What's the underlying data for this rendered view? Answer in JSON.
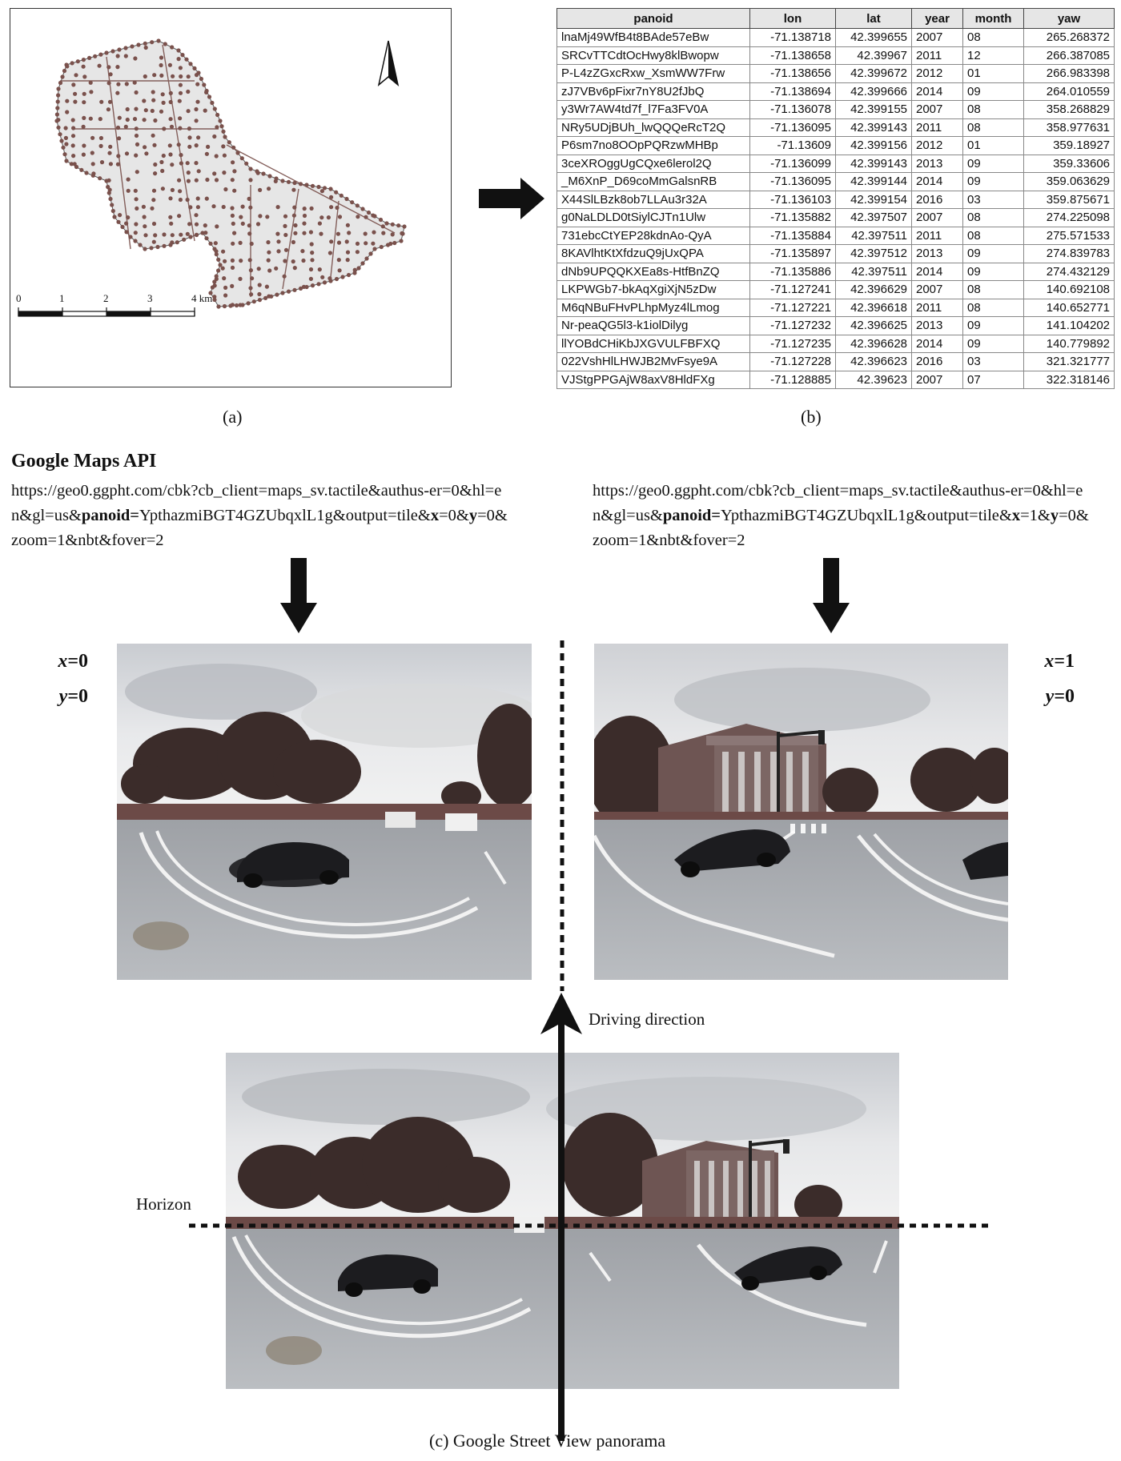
{
  "map": {
    "scale_ticks": [
      "0",
      "1",
      "2",
      "3",
      "4 km"
    ],
    "point_color": "#7a514c",
    "area_color": "#e6e6e6"
  },
  "table": {
    "headers": [
      "panoid",
      "lon",
      "lat",
      "year",
      "month",
      "yaw"
    ],
    "rows": [
      [
        "lnaMj49WfB4t8BAde57eBw",
        "-71.138718",
        "42.399655",
        "2007",
        "08",
        "265.268372"
      ],
      [
        "SRCvTTCdtOcHwy8klBwopw",
        "-71.138658",
        "42.39967",
        "2011",
        "12",
        "266.387085"
      ],
      [
        "P-L4zZGxcRxw_XsmWW7Frw",
        "-71.138656",
        "42.399672",
        "2012",
        "01",
        "266.983398"
      ],
      [
        "zJ7VBv6pFixr7nY8U2fJbQ",
        "-71.138694",
        "42.399666",
        "2014",
        "09",
        "264.010559"
      ],
      [
        "y3Wr7AW4td7f_l7Fa3FV0A",
        "-71.136078",
        "42.399155",
        "2007",
        "08",
        "358.268829"
      ],
      [
        "NRy5UDjBUh_lwQQQeRcT2Q",
        "-71.136095",
        "42.399143",
        "2011",
        "08",
        "358.977631"
      ],
      [
        "P6sm7no8OOpPQRzwMHBp",
        "-71.13609",
        "42.399156",
        "2012",
        "01",
        "359.18927"
      ],
      [
        "3ceXROggUgCQxe6lerol2Q",
        "-71.136099",
        "42.399143",
        "2013",
        "09",
        "359.33606"
      ],
      [
        "_M6XnP_D69coMmGalsnRB",
        "-71.136095",
        "42.399144",
        "2014",
        "09",
        "359.063629"
      ],
      [
        "X44SlLBzk8ob7LLAu3r32A",
        "-71.136103",
        "42.399154",
        "2016",
        "03",
        "359.875671"
      ],
      [
        "g0NaLDLD0tSiylCJTn1Ulw",
        "-71.135882",
        "42.397507",
        "2007",
        "08",
        "274.225098"
      ],
      [
        "731ebcCtYEP28kdnAo-QyA",
        "-71.135884",
        "42.397511",
        "2011",
        "08",
        "275.571533"
      ],
      [
        "8KAVlhtKtXfdzuQ9jUxQPA",
        "-71.135897",
        "42.397512",
        "2013",
        "09",
        "274.839783"
      ],
      [
        "dNb9UPQQKXEa8s-HtfBnZQ",
        "-71.135886",
        "42.397511",
        "2014",
        "09",
        "274.432129"
      ],
      [
        "LKPWGb7-bkAqXgiXjN5zDw",
        "-71.127241",
        "42.396629",
        "2007",
        "08",
        "140.692108"
      ],
      [
        "M6qNBuFHvPLhpMyz4lLmog",
        "-71.127221",
        "42.396618",
        "2011",
        "08",
        "140.652771"
      ],
      [
        "Nr-peaQG5l3-k1iolDilyg",
        "-71.127232",
        "42.396625",
        "2013",
        "09",
        "141.104202"
      ],
      [
        "llYOBdCHiKbJXGVULFBFXQ",
        "-71.127235",
        "42.396628",
        "2014",
        "09",
        "140.779892"
      ],
      [
        "022VshHlLHWJB2MvFsye9A",
        "-71.127228",
        "42.396623",
        "2016",
        "03",
        "321.321777"
      ],
      [
        "VJStgPPGAjW8axV8HldFXg",
        "-71.128885",
        "42.39623",
        "2007",
        "07",
        "322.318146"
      ]
    ]
  },
  "captions": {
    "a": "(a)",
    "b": "(b)",
    "c": "(c) Google Street View panorama"
  },
  "api": {
    "title": "Google Maps API",
    "url_left": {
      "pre": "https://geo0.ggpht.com/cbk?cb_client=maps_sv.tactile&authus-er=0&hl=en&gl=us&",
      "panoid_key": "panoid",
      "eq": "=",
      "mid": "YpthazmiBGT4GZUbqxlL1g&output=tile&",
      "x_key": "x",
      "x_val": "=0&",
      "y_key": "y",
      "y_val": "=0&zoom=1&nbt&fover=2"
    },
    "url_right": {
      "pre": "https://geo0.ggpht.com/cbk?cb_client=maps_sv.tactile&authus-er=0&hl=en&gl=us&",
      "panoid_key": "panoid",
      "eq": "=",
      "mid": "YpthazmiBGT4GZUbqxlL1g&output=tile&",
      "x_key": "x",
      "x_val": "=1&",
      "y_key": "y",
      "y_val": "=0&zoom=1&nbt&fover=2"
    }
  },
  "tiles": {
    "left": {
      "x_label": "x",
      "x_value": "=0",
      "y_label": "y",
      "y_value": "=0"
    },
    "right": {
      "x_label": "x",
      "x_value": "=1",
      "y_label": "y",
      "y_value": "=0"
    }
  },
  "labels": {
    "driving_direction": "Driving direction",
    "horizon": "Horizon"
  }
}
